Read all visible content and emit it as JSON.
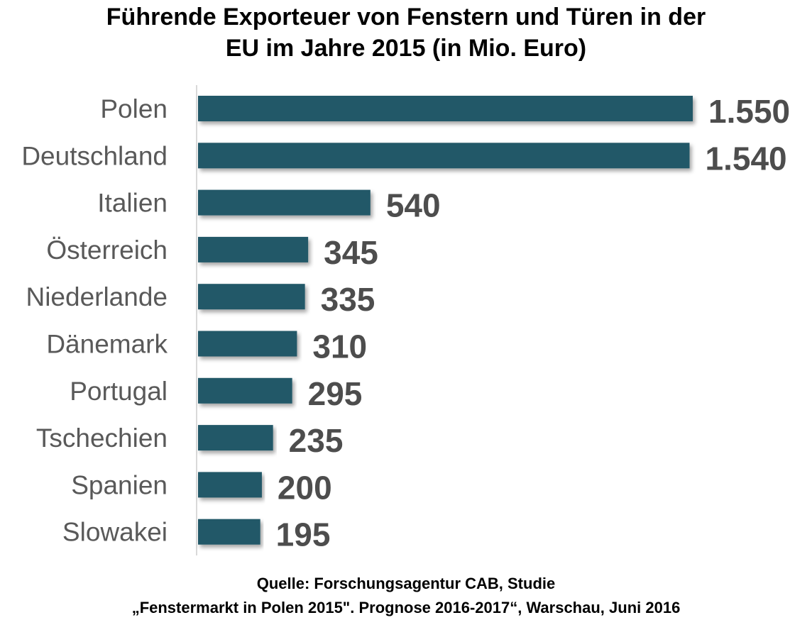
{
  "chart_data": {
    "type": "bar",
    "orientation": "horizontal",
    "title_line1": "Führende Exporteuer von Fenstern und Türen in der",
    "title_line2": "EU im Jahre 2015 (in Mio. Euro)",
    "categories": [
      "Polen",
      "Deutschland",
      "Italien",
      "Österreich",
      "Niederlande",
      "Dänemark",
      "Portugal",
      "Tschechien",
      "Spanien",
      "Slowakei"
    ],
    "values": [
      1550,
      1540,
      540,
      345,
      335,
      310,
      295,
      235,
      200,
      195
    ],
    "value_labels": [
      "1.550",
      "1.540",
      "540",
      "345",
      "335",
      "310",
      "295",
      "235",
      "200",
      "195"
    ],
    "xlim": [
      0,
      1550
    ],
    "grid": false,
    "legend": "none",
    "colors": {
      "bar": "#215868",
      "value_label": "#4d4d4d",
      "category_label": "#595959",
      "axis_line": "#d9d9d9"
    }
  },
  "source": {
    "line1": "Quelle: Forschungsagentur CAB, Studie",
    "line2": "„Fenstermarkt in Polen 2015\". Prognose 2016-2017“, Warschau, Juni 2016"
  }
}
